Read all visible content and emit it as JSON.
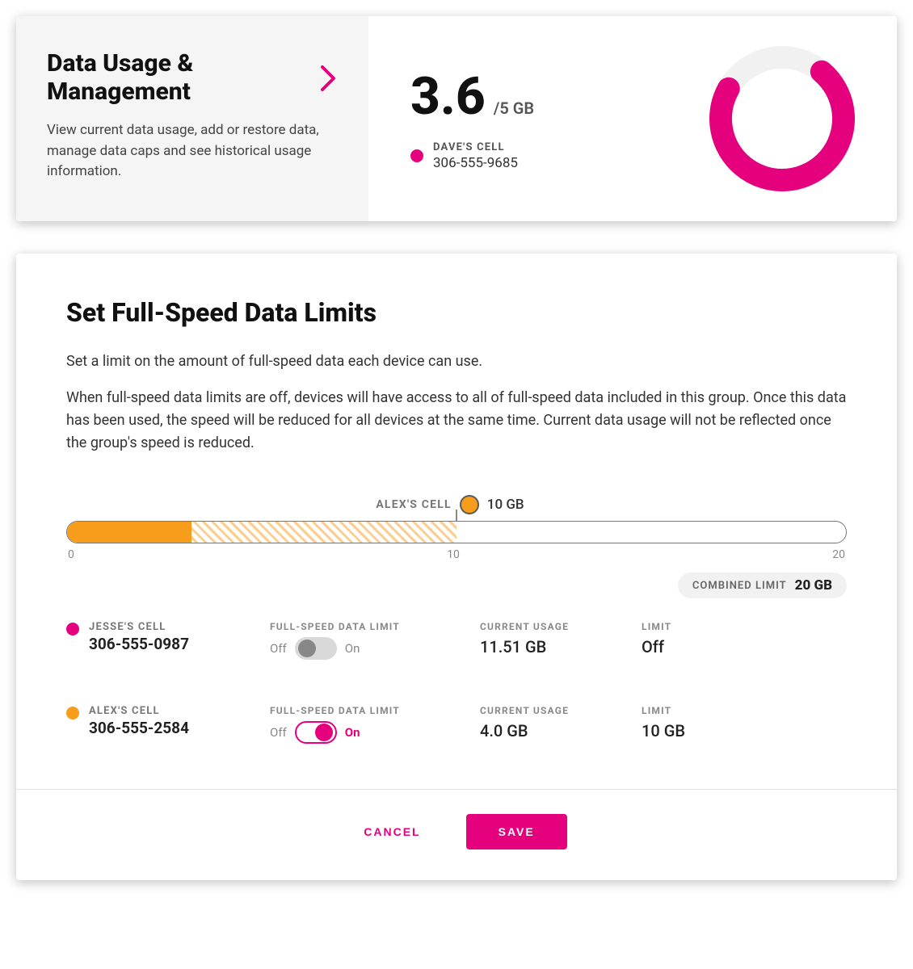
{
  "colors": {
    "magenta": "#e5007e",
    "orange": "#f89c1c",
    "grey_bg": "#f5f5f5",
    "toggle_off": "#d9d9d9",
    "toggle_off_knob": "#888888"
  },
  "usage_card": {
    "title": "Data Usage & Management",
    "chevron_color": "#e5007e",
    "description": "View current data usage, add or restore data, manage data caps and see historical usage information.",
    "used_value": "3.6",
    "total_label": "/5 GB",
    "device": {
      "dot_color": "#e5007e",
      "name": "DAVE'S CELL",
      "phone": "306-555-9685"
    },
    "donut": {
      "percent": 72,
      "ring_color": "#e5007e",
      "track_color": "#f1f1f1",
      "stroke_width": 28,
      "size": 180
    }
  },
  "limits_card": {
    "title": "Set Full-Speed Data Limits",
    "desc1": "Set a limit on the amount of full-speed data each device can use.",
    "desc2": "When full-speed data limits are off, devices will have access to all of full-speed data included in this group. Once this data has been used, the speed will be reduced for all devices at the same time. Current data usage will not be reflected once the group's speed is reduced.",
    "slider": {
      "label_device": "ALEX'S CELL",
      "value_label": "10 GB",
      "min": 0,
      "mid": 10,
      "max": 20,
      "limit_ratio": 0.5,
      "fill_ratio": 0.16,
      "fill_color": "#f89c1c",
      "hatch_color": "#f89c1c"
    },
    "combined_label": "COMBINED LIMIT",
    "combined_value": "20 GB",
    "columns": {
      "toggle": "FULL-SPEED DATA LIMIT",
      "usage": "CURRENT USAGE",
      "limit": "LIMIT",
      "off": "Off",
      "on": "On"
    },
    "devices": [
      {
        "dot_color": "#e5007e",
        "name": "JESSE'S CELL",
        "phone": "306-555-0987",
        "toggle_on": false,
        "current_usage": "11.51 GB",
        "limit": "Off"
      },
      {
        "dot_color": "#f89c1c",
        "name": "ALEX'S CELL",
        "phone": "306-555-2584",
        "toggle_on": true,
        "current_usage": "4.0 GB",
        "limit": "10 GB"
      }
    ],
    "buttons": {
      "cancel": "CANCEL",
      "save": "SAVE"
    }
  }
}
